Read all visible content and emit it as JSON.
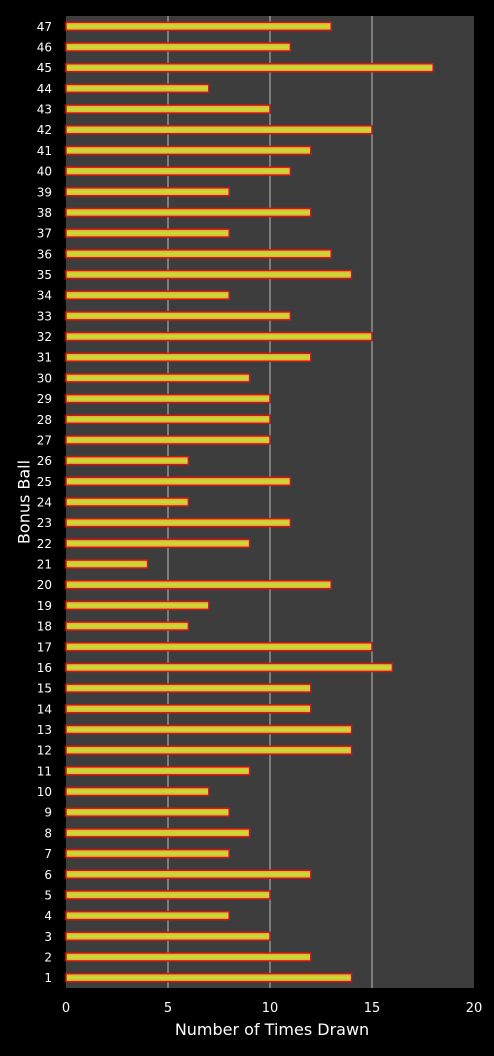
{
  "chart_data": {
    "type": "bar",
    "orientation": "horizontal",
    "title": "",
    "xlabel": "Number of Times Drawn",
    "ylabel": "Bonus Ball",
    "xlim": [
      0,
      20
    ],
    "xticks": [
      "0",
      "5",
      "10",
      "15",
      "20"
    ],
    "grid": "vertical",
    "legend": "none",
    "categories": [
      "1",
      "2",
      "3",
      "4",
      "5",
      "6",
      "7",
      "8",
      "9",
      "10",
      "11",
      "12",
      "13",
      "14",
      "15",
      "16",
      "17",
      "18",
      "19",
      "20",
      "21",
      "22",
      "23",
      "24",
      "25",
      "26",
      "27",
      "28",
      "29",
      "30",
      "31",
      "32",
      "33",
      "34",
      "35",
      "36",
      "37",
      "38",
      "39",
      "40",
      "41",
      "42",
      "43",
      "44",
      "45",
      "46",
      "47"
    ],
    "values": [
      14,
      12,
      10,
      8,
      10,
      12,
      8,
      9,
      8,
      7,
      9,
      14,
      14,
      12,
      12,
      16,
      15,
      6,
      7,
      13,
      4,
      9,
      11,
      6,
      11,
      6,
      10,
      10,
      10,
      9,
      12,
      15,
      11,
      8,
      14,
      13,
      8,
      12,
      8,
      11,
      12,
      15,
      10,
      7,
      18,
      11,
      13
    ],
    "colors": {
      "background": "#000000",
      "plot_area": "#3d3d3d",
      "grid": "#bdbdbd",
      "bar_center": "#c6e032",
      "bar_edge": "#e7a83a",
      "bar_border": "#d11414",
      "text": "#ffffff"
    }
  }
}
